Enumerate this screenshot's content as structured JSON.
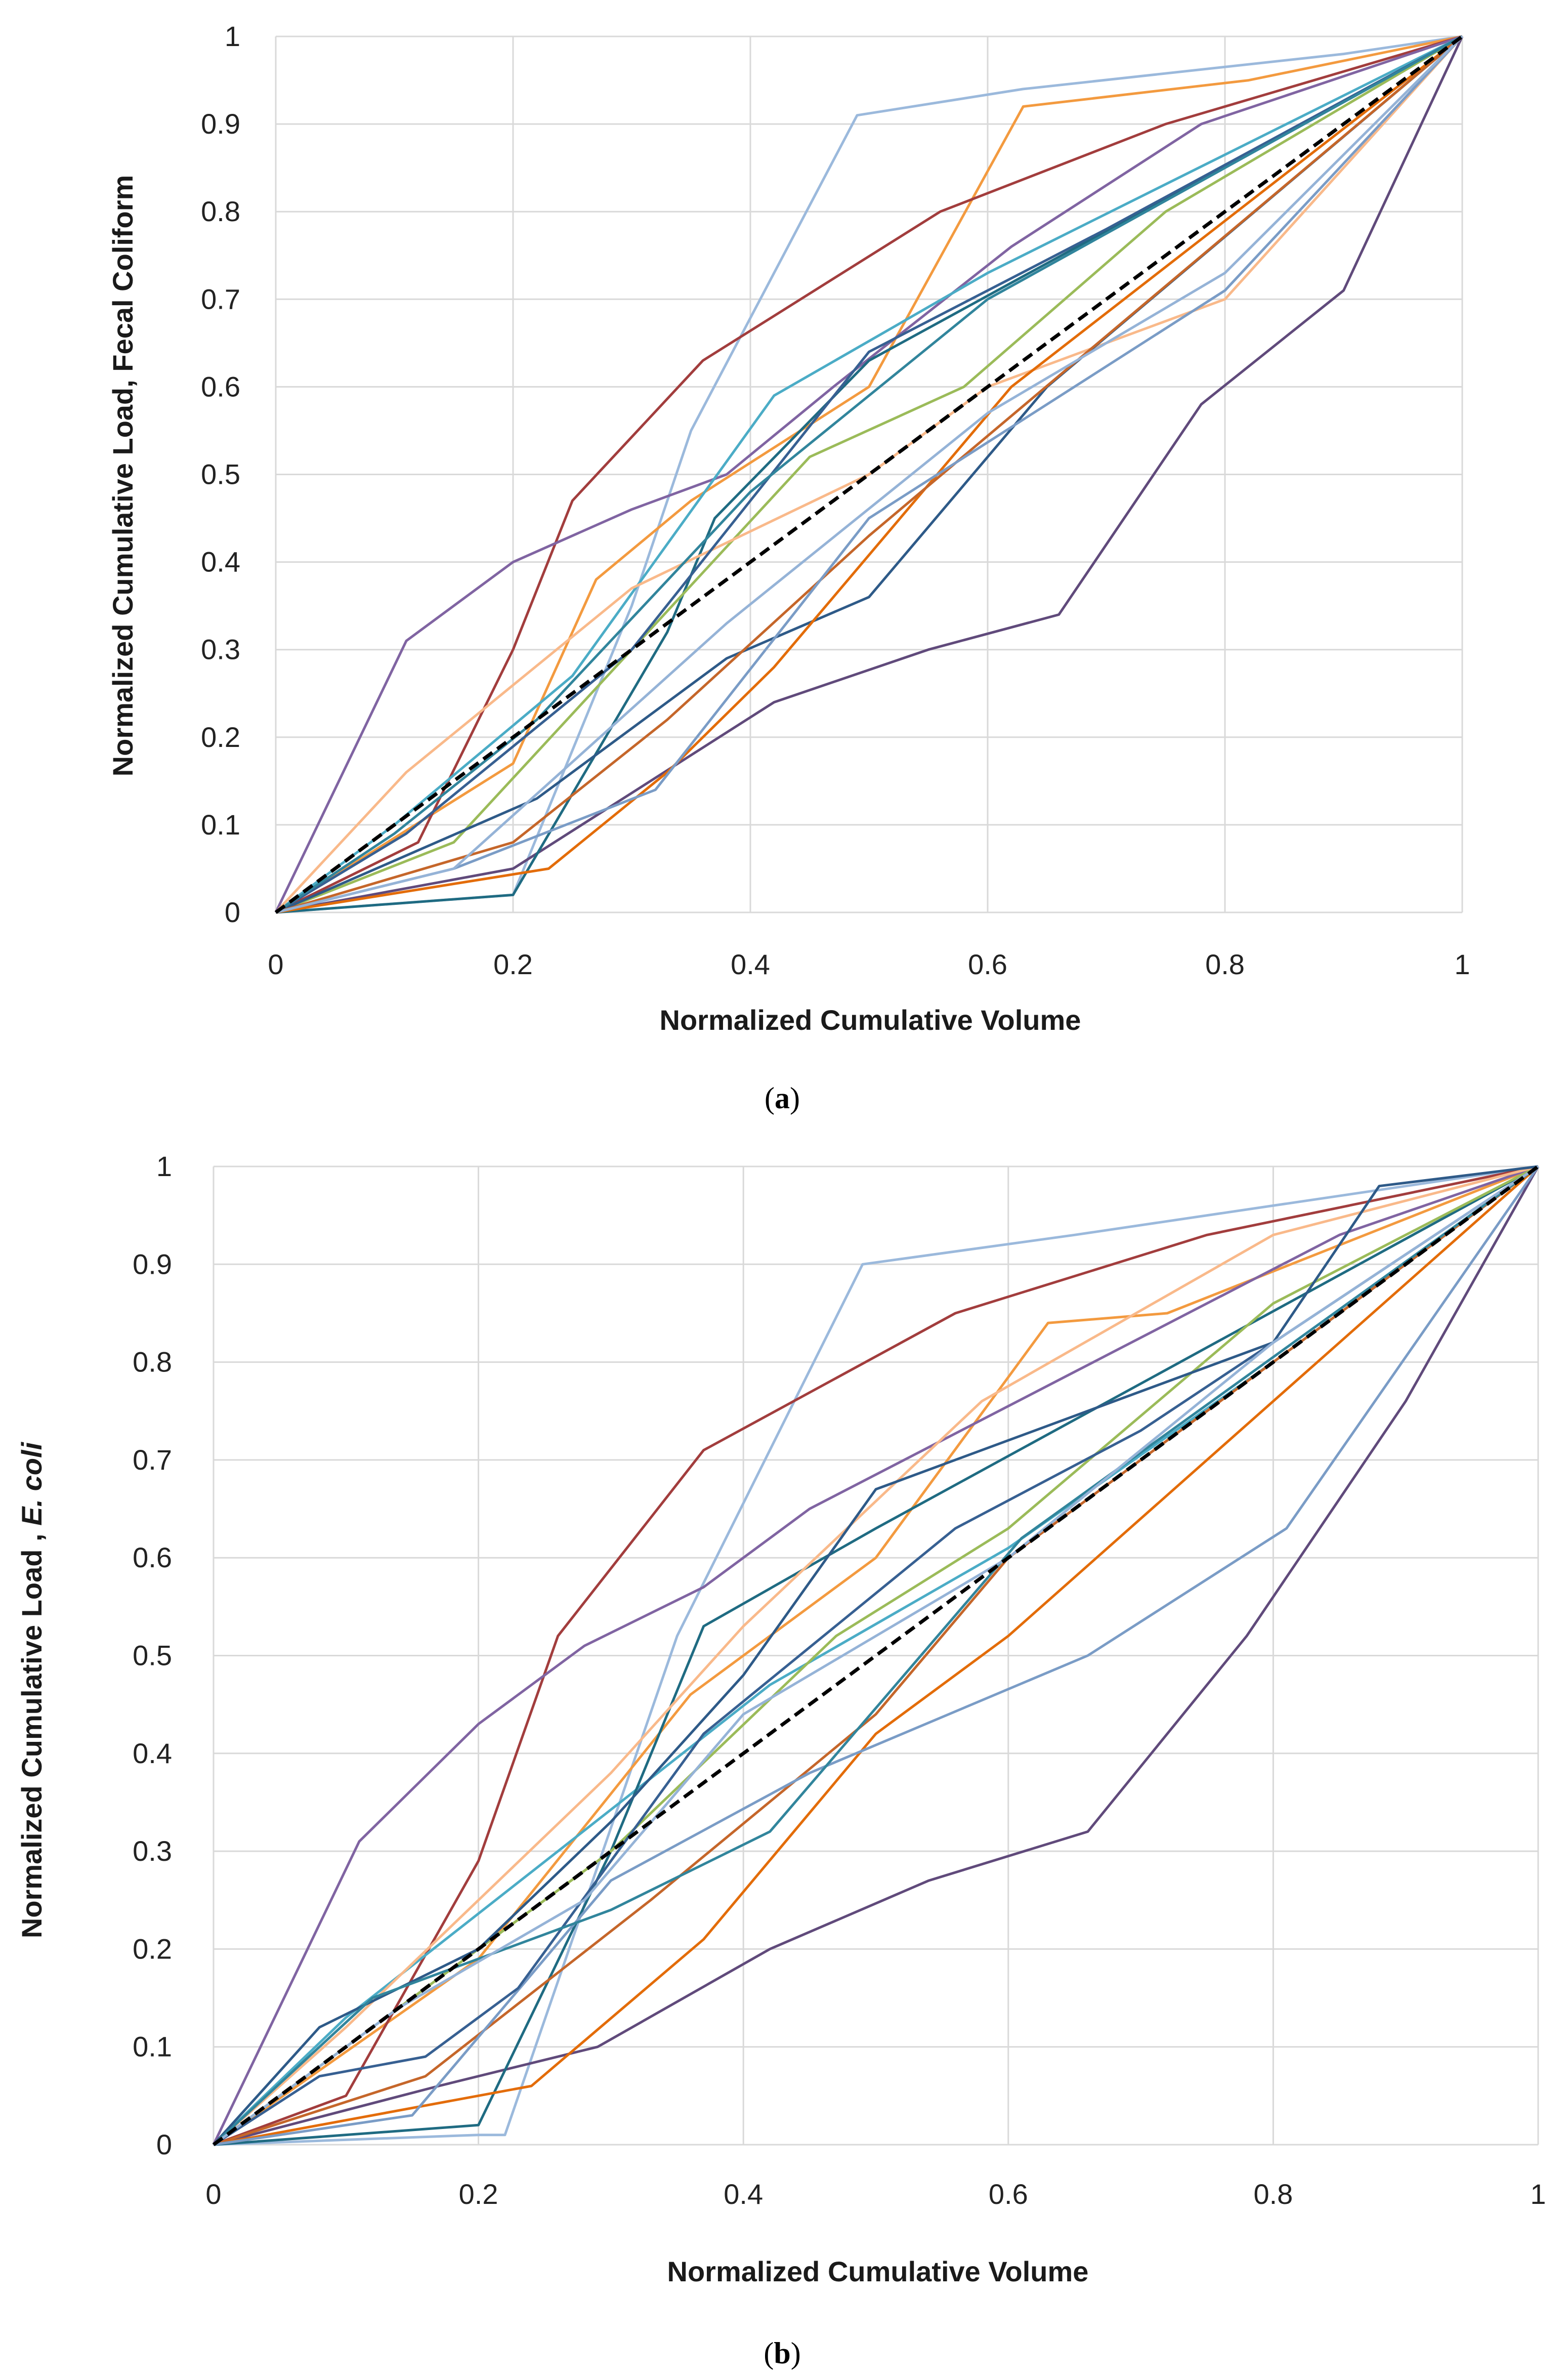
{
  "chart_data": [
    {
      "type": "line",
      "panel_label": "a",
      "xlabel": "Normalized Cumulative Volume",
      "ylabel": "Normalized Cumulative Load, Fecal Coliform",
      "ylabel_italic": "",
      "xlim": [
        0,
        1
      ],
      "ylim": [
        0,
        1
      ],
      "x_ticks": [
        0,
        0.2,
        0.4,
        0.6,
        0.8,
        1
      ],
      "y_ticks": [
        0,
        0.1,
        0.2,
        0.3,
        0.4,
        0.5,
        0.6,
        0.7,
        0.8,
        0.9,
        1
      ],
      "x_tick_labels": [
        "0",
        "0.2",
        "0.4",
        "0.6",
        "0.8",
        "1"
      ],
      "y_tick_labels": [
        "0",
        "0.1",
        "0.2",
        "0.3",
        "0.4",
        "0.5",
        "0.6",
        "0.7",
        "0.8",
        "0.9",
        "1"
      ],
      "grid": true,
      "reference_line": {
        "name": "1:1 line",
        "x": [
          0,
          1
        ],
        "y": [
          0,
          1
        ],
        "color": "#000000",
        "style": "dashed"
      },
      "series": [
        {
          "name": "s1",
          "color": "#9bb9dc",
          "x": [
            0,
            0.2,
            0.3,
            0.35,
            0.49,
            0.63,
            0.9,
            1
          ],
          "y": [
            0,
            0.02,
            0.35,
            0.55,
            0.91,
            0.94,
            0.98,
            1
          ]
        },
        {
          "name": "s2",
          "color": "#f39a3f",
          "x": [
            0,
            0.2,
            0.27,
            0.35,
            0.5,
            0.63,
            0.82,
            1
          ],
          "y": [
            0,
            0.17,
            0.38,
            0.47,
            0.6,
            0.92,
            0.95,
            1
          ]
        },
        {
          "name": "s3",
          "color": "#a23d3d",
          "x": [
            0,
            0.12,
            0.2,
            0.25,
            0.36,
            0.56,
            0.75,
            1
          ],
          "y": [
            0,
            0.08,
            0.3,
            0.47,
            0.63,
            0.8,
            0.9,
            1
          ]
        },
        {
          "name": "s4",
          "color": "#8064a2",
          "x": [
            0,
            0.11,
            0.2,
            0.3,
            0.38,
            0.47,
            0.62,
            0.78,
            1
          ],
          "y": [
            0,
            0.31,
            0.4,
            0.46,
            0.5,
            0.6,
            0.76,
            0.9,
            1
          ]
        },
        {
          "name": "s5",
          "color": "#604a7b",
          "x": [
            0,
            0.2,
            0.42,
            0.55,
            0.66,
            0.78,
            0.9,
            1
          ],
          "y": [
            0,
            0.05,
            0.24,
            0.3,
            0.34,
            0.58,
            0.71,
            1
          ]
        },
        {
          "name": "s6",
          "color": "#4bacc6",
          "x": [
            0,
            0.1,
            0.25,
            0.42,
            0.6,
            1
          ],
          "y": [
            0,
            0.1,
            0.27,
            0.59,
            0.73,
            1
          ]
        },
        {
          "name": "s7",
          "color": "#1f6b82",
          "x": [
            0,
            0.2,
            0.33,
            0.37,
            0.5,
            1
          ],
          "y": [
            0,
            0.02,
            0.32,
            0.45,
            0.63,
            1
          ]
        },
        {
          "name": "s8",
          "color": "#9bbb59",
          "x": [
            0,
            0.15,
            0.3,
            0.45,
            0.58,
            0.75,
            1
          ],
          "y": [
            0,
            0.08,
            0.3,
            0.52,
            0.6,
            0.8,
            1
          ]
        },
        {
          "name": "s9",
          "color": "#f9b98a",
          "x": [
            0,
            0.11,
            0.3,
            0.5,
            0.6,
            0.8,
            1
          ],
          "y": [
            0,
            0.16,
            0.37,
            0.5,
            0.6,
            0.7,
            1
          ]
        },
        {
          "name": "s10",
          "color": "#2e5a88",
          "x": [
            0,
            0.22,
            0.38,
            0.5,
            0.65,
            1
          ],
          "y": [
            0,
            0.13,
            0.29,
            0.36,
            0.6,
            1
          ]
        },
        {
          "name": "s11",
          "color": "#e36c09",
          "x": [
            0,
            0.23,
            0.33,
            0.42,
            0.62,
            1
          ],
          "y": [
            0,
            0.05,
            0.16,
            0.28,
            0.6,
            1
          ]
        },
        {
          "name": "s12",
          "color": "#c5662a",
          "x": [
            0,
            0.2,
            0.33,
            0.5,
            1
          ],
          "y": [
            0,
            0.08,
            0.22,
            0.43,
            1
          ]
        },
        {
          "name": "s13",
          "color": "#7a9cc6",
          "x": [
            0,
            0.15,
            0.32,
            0.5,
            0.8,
            1
          ],
          "y": [
            0,
            0.05,
            0.14,
            0.45,
            0.71,
            1
          ]
        },
        {
          "name": "s14",
          "color": "#376092",
          "x": [
            0,
            0.11,
            0.3,
            0.5,
            0.7,
            1
          ],
          "y": [
            0,
            0.09,
            0.3,
            0.64,
            0.78,
            1
          ]
        },
        {
          "name": "s15",
          "color": "#31859c",
          "x": [
            0,
            0.1,
            0.22,
            0.4,
            0.6,
            1
          ],
          "y": [
            0,
            0.09,
            0.22,
            0.48,
            0.7,
            1
          ]
        },
        {
          "name": "s16",
          "color": "#95b3d7",
          "x": [
            0,
            0.15,
            0.38,
            0.6,
            0.8,
            1
          ],
          "y": [
            0,
            0.05,
            0.33,
            0.57,
            0.73,
            1
          ]
        }
      ]
    },
    {
      "type": "line",
      "panel_label": "b",
      "xlabel": "Normalized Cumulative Volume",
      "ylabel": "Normalized Cumulative Load , ",
      "ylabel_italic": "E. coli",
      "xlim": [
        0,
        1
      ],
      "ylim": [
        0,
        1
      ],
      "x_ticks": [
        0,
        0.2,
        0.4,
        0.6,
        0.8,
        1
      ],
      "y_ticks": [
        0,
        0.1,
        0.2,
        0.3,
        0.4,
        0.5,
        0.6,
        0.7,
        0.8,
        0.9,
        1
      ],
      "x_tick_labels": [
        "0",
        "0.2",
        "0.4",
        "0.6",
        "0.8",
        "1"
      ],
      "y_tick_labels": [
        "0",
        "0.1",
        "0.2",
        "0.3",
        "0.4",
        "0.5",
        "0.6",
        "0.7",
        "0.8",
        "0.9",
        "1"
      ],
      "grid": true,
      "reference_line": {
        "name": "1:1 line",
        "x": [
          0,
          1
        ],
        "y": [
          0,
          1
        ],
        "color": "#000000",
        "style": "dashed"
      },
      "series": [
        {
          "name": "s1",
          "color": "#9bb9dc",
          "x": [
            0,
            0.2,
            0.22,
            0.35,
            0.49,
            0.65,
            0.9,
            1
          ],
          "y": [
            0,
            0.01,
            0.01,
            0.52,
            0.9,
            0.93,
            0.98,
            1
          ]
        },
        {
          "name": "s2",
          "color": "#f39a3f",
          "x": [
            0,
            0.2,
            0.36,
            0.5,
            0.63,
            0.72,
            1
          ],
          "y": [
            0,
            0.19,
            0.46,
            0.6,
            0.84,
            0.85,
            1
          ]
        },
        {
          "name": "s3",
          "color": "#a23d3d",
          "x": [
            0,
            0.1,
            0.2,
            0.26,
            0.37,
            0.56,
            0.75,
            1
          ],
          "y": [
            0,
            0.05,
            0.29,
            0.52,
            0.71,
            0.85,
            0.93,
            1
          ]
        },
        {
          "name": "s4",
          "color": "#8064a2",
          "x": [
            0,
            0.11,
            0.2,
            0.28,
            0.37,
            0.45,
            0.65,
            0.85,
            1
          ],
          "y": [
            0,
            0.31,
            0.43,
            0.51,
            0.57,
            0.65,
            0.79,
            0.93,
            1
          ]
        },
        {
          "name": "s5",
          "color": "#604a7b",
          "x": [
            0,
            0.17,
            0.29,
            0.42,
            0.54,
            0.66,
            0.78,
            0.9,
            1
          ],
          "y": [
            0,
            0.06,
            0.1,
            0.2,
            0.27,
            0.32,
            0.52,
            0.76,
            1
          ]
        },
        {
          "name": "s6",
          "color": "#4bacc6",
          "x": [
            0,
            0.1,
            0.26,
            0.42,
            0.6,
            0.8,
            1
          ],
          "y": [
            0,
            0.13,
            0.3,
            0.47,
            0.61,
            0.8,
            1
          ]
        },
        {
          "name": "s7",
          "color": "#1f6b82",
          "x": [
            0,
            0.2,
            0.3,
            0.37,
            0.5,
            1
          ],
          "y": [
            0,
            0.02,
            0.3,
            0.53,
            0.63,
            1
          ]
        },
        {
          "name": "s8",
          "color": "#9bbb59",
          "x": [
            0,
            0.15,
            0.3,
            0.47,
            0.6,
            0.8,
            1
          ],
          "y": [
            0,
            0.15,
            0.3,
            0.52,
            0.63,
            0.86,
            1
          ]
        },
        {
          "name": "s9",
          "color": "#f9b98a",
          "x": [
            0,
            0.1,
            0.3,
            0.4,
            0.58,
            0.8,
            1
          ],
          "y": [
            0,
            0.12,
            0.38,
            0.53,
            0.76,
            0.93,
            1
          ]
        },
        {
          "name": "s10",
          "color": "#2e5a88",
          "x": [
            0,
            0.08,
            0.2,
            0.3,
            0.4,
            0.5,
            0.6,
            0.8,
            0.88,
            1
          ],
          "y": [
            0,
            0.12,
            0.2,
            0.33,
            0.48,
            0.67,
            0.72,
            0.82,
            0.98,
            1
          ]
        },
        {
          "name": "s11",
          "color": "#e36c09",
          "x": [
            0,
            0.2,
            0.24,
            0.37,
            0.5,
            0.6,
            1
          ],
          "y": [
            0,
            0.05,
            0.06,
            0.21,
            0.42,
            0.52,
            1
          ]
        },
        {
          "name": "s12",
          "color": "#c5662a",
          "x": [
            0,
            0.16,
            0.33,
            0.5,
            0.6,
            1
          ],
          "y": [
            0,
            0.07,
            0.25,
            0.44,
            0.6,
            1
          ]
        },
        {
          "name": "s13",
          "color": "#7a9cc6",
          "x": [
            0,
            0.15,
            0.3,
            0.45,
            0.66,
            0.81,
            1
          ],
          "y": [
            0,
            0.03,
            0.27,
            0.38,
            0.5,
            0.63,
            1
          ]
        },
        {
          "name": "s14",
          "color": "#376092",
          "x": [
            0,
            0.08,
            0.16,
            0.23,
            0.37,
            0.56,
            0.7,
            1
          ],
          "y": [
            0,
            0.07,
            0.09,
            0.16,
            0.42,
            0.63,
            0.73,
            1
          ]
        },
        {
          "name": "s15",
          "color": "#31859c",
          "x": [
            0,
            0.12,
            0.3,
            0.42,
            0.61,
            1
          ],
          "y": [
            0,
            0.15,
            0.24,
            0.32,
            0.62,
            1
          ]
        },
        {
          "name": "s16",
          "color": "#95b3d7",
          "x": [
            0,
            0.14,
            0.28,
            0.4,
            0.6,
            0.8,
            1
          ],
          "y": [
            0,
            0.14,
            0.25,
            0.44,
            0.6,
            0.82,
            1
          ]
        }
      ]
    }
  ]
}
